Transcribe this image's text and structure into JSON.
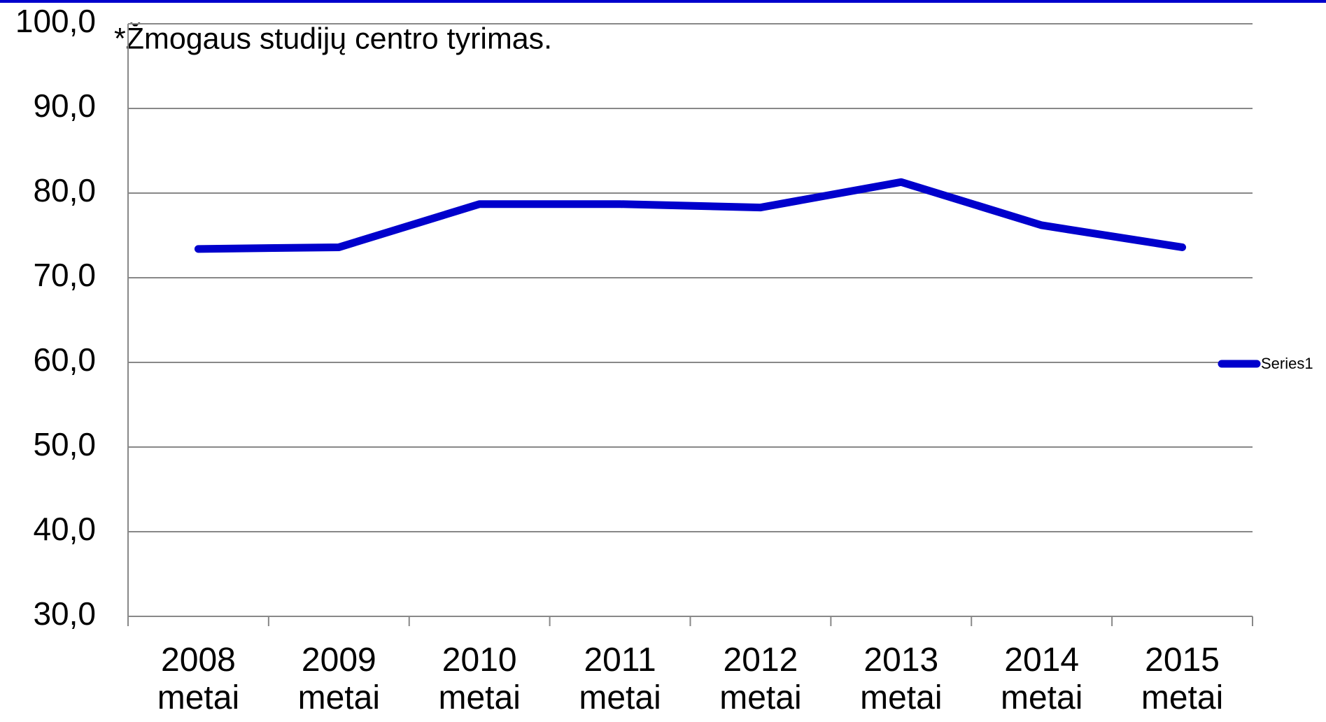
{
  "chart_data": {
    "type": "line",
    "annotation": "*Žmogaus studijų centro tyrimas.",
    "categories": [
      "2008 metai",
      "2009 metai",
      "2010 metai",
      "2011 metai",
      "2012 metai",
      "2013 metai",
      "2014 metai",
      "2015 metai"
    ],
    "series": [
      {
        "name": "Series1",
        "color": "#0000cc",
        "values": [
          73.4,
          73.6,
          78.7,
          78.7,
          78.3,
          81.3,
          76.2,
          73.6
        ]
      }
    ],
    "ylim": [
      30,
      100
    ],
    "yticks": [
      {
        "value": 30,
        "label": "30,0"
      },
      {
        "value": 40,
        "label": "40,0"
      },
      {
        "value": 50,
        "label": "50,0"
      },
      {
        "value": 60,
        "label": "60,0"
      },
      {
        "value": 70,
        "label": "70,0"
      },
      {
        "value": 80,
        "label": "80,0"
      },
      {
        "value": 90,
        "label": "90,0"
      },
      {
        "value": 100,
        "label": "100,0"
      }
    ],
    "grid": true,
    "legend": "right"
  }
}
